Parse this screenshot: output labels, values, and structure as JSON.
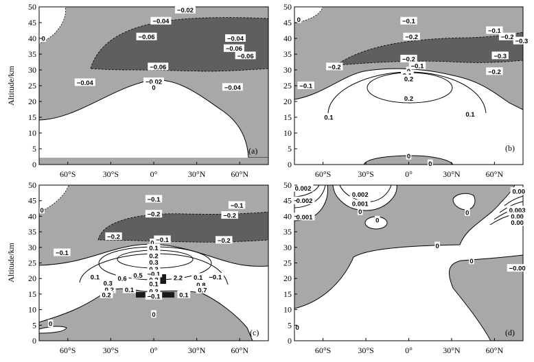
{
  "figure": {
    "ylabel": "Altitude/km",
    "yticks": [
      "0",
      "5",
      "10",
      "15",
      "20",
      "25",
      "30",
      "35",
      "40",
      "45",
      "50"
    ],
    "xticks": [
      "60°S",
      "30°S",
      "0°",
      "30°N",
      "60°N"
    ],
    "colors": {
      "light_fill": "#a8a8a8",
      "dark_fill": "#5f5f5f",
      "background": "#ffffff",
      "line": "#000000"
    }
  },
  "chart_data": [
    {
      "panel": "(a)",
      "type": "contour",
      "xlabel": "",
      "ylabel": "Altitude/km",
      "xlim": [
        -80,
        80
      ],
      "ylim": [
        0,
        50
      ],
      "contour_labels": [
        {
          "text": "−0.02",
          "lat": 22,
          "alt": 49
        },
        {
          "text": "−0.04",
          "lat": 5,
          "alt": 45.5
        },
        {
          "text": "−0.06",
          "lat": -5,
          "alt": 40.5
        },
        {
          "text": "−0.04",
          "lat": 57,
          "alt": 40
        },
        {
          "text": "−0.06",
          "lat": 56,
          "alt": 36.8
        },
        {
          "text": "−0.06",
          "lat": 64,
          "alt": 34.5
        },
        {
          "text": "−0.06",
          "lat": 3,
          "alt": 31
        },
        {
          "text": "−0.04",
          "lat": -48,
          "alt": 26
        },
        {
          "text": "−0.02",
          "lat": 0,
          "alt": 26.3
        },
        {
          "text": "−0.04",
          "lat": 55,
          "alt": 24.5
        },
        {
          "text": "0",
          "lat": 0,
          "alt": 24.5
        },
        {
          "text": "0",
          "lat": -77,
          "alt": 40
        }
      ]
    },
    {
      "panel": "(b)",
      "type": "contour",
      "xlabel": "",
      "ylabel": "",
      "xlim": [
        -80,
        80
      ],
      "ylim": [
        0,
        50
      ],
      "contour_labels": [
        {
          "text": "0",
          "lat": -77,
          "alt": 46
        },
        {
          "text": "−0.1",
          "lat": 0,
          "alt": 45.5
        },
        {
          "text": "−0.2",
          "lat": 2,
          "alt": 40.5
        },
        {
          "text": "−0.1",
          "lat": 60,
          "alt": 42.5
        },
        {
          "text": "−0.2",
          "lat": 69,
          "alt": 40.5
        },
        {
          "text": "−0.3",
          "lat": 79,
          "alt": 39.2
        },
        {
          "text": "−0.3",
          "lat": 64,
          "alt": 34.5
        },
        {
          "text": "−0.2",
          "lat": 0,
          "alt": 33.5
        },
        {
          "text": "−0.2",
          "lat": -52,
          "alt": 31
        },
        {
          "text": "−0.1",
          "lat": 6,
          "alt": 31.3
        },
        {
          "text": "−0.2",
          "lat": 60,
          "alt": 29.5
        },
        {
          "text": "0",
          "lat": 0,
          "alt": 29.7
        },
        {
          "text": "0.1",
          "lat": -1,
          "alt": 28.3
        },
        {
          "text": "0.2",
          "lat": 0,
          "alt": 27.2
        },
        {
          "text": "−0.1",
          "lat": -72,
          "alt": 25
        },
        {
          "text": "0.2",
          "lat": 0,
          "alt": 21
        },
        {
          "text": "0.1",
          "lat": -56,
          "alt": 15
        },
        {
          "text": "0.1",
          "lat": 43,
          "alt": 16
        },
        {
          "text": "0",
          "lat": 0,
          "alt": 2.7
        },
        {
          "text": "0",
          "lat": 15,
          "alt": 0.3
        }
      ]
    },
    {
      "panel": "(c)",
      "type": "contour",
      "xlabel": "",
      "ylabel": "Altitude/km",
      "xlim": [
        -80,
        80
      ],
      "ylim": [
        0,
        50
      ],
      "contour_labels": [
        {
          "text": "0",
          "lat": -78,
          "alt": 42
        },
        {
          "text": "−0.1",
          "lat": 0,
          "alt": 45.5
        },
        {
          "text": "−0.1",
          "lat": 58,
          "alt": 43.5
        },
        {
          "text": "−0.2",
          "lat": 0,
          "alt": 40.7
        },
        {
          "text": "−0.2",
          "lat": 53,
          "alt": 40.3
        },
        {
          "text": "−0.2",
          "lat": -28,
          "alt": 33.5
        },
        {
          "text": "−0.1",
          "lat": 6,
          "alt": 32.5
        },
        {
          "text": "−0.2",
          "lat": 49,
          "alt": 32.3
        },
        {
          "text": "0",
          "lat": -1,
          "alt": 31.5
        },
        {
          "text": "0.1",
          "lat": 0,
          "alt": 29.8
        },
        {
          "text": "−0.1",
          "lat": -64,
          "alt": 28.3
        },
        {
          "text": "0.2",
          "lat": 0,
          "alt": 27.3
        },
        {
          "text": "0.3",
          "lat": 0,
          "alt": 25.2
        },
        {
          "text": "0.2",
          "lat": 0,
          "alt": 23
        },
        {
          "text": "0.1",
          "lat": -41,
          "alt": 20.5
        },
        {
          "text": "0.5",
          "lat": -11,
          "alt": 21
        },
        {
          "text": "0.6",
          "lat": -22,
          "alt": 20
        },
        {
          "text": "−0.1",
          "lat": 0,
          "alt": 21.5
        },
        {
          "text": "0.2",
          "lat": 0,
          "alt": 19.6
        },
        {
          "text": "2.2",
          "lat": 17,
          "alt": 20.3
        },
        {
          "text": "0.1",
          "lat": 31,
          "alt": 20.4
        },
        {
          "text": "−0.1",
          "lat": 43,
          "alt": 20.5
        },
        {
          "text": "0.3",
          "lat": -32,
          "alt": 18.5
        },
        {
          "text": "0.1",
          "lat": 0,
          "alt": 18.3
        },
        {
          "text": "0.8",
          "lat": 33,
          "alt": 18
        },
        {
          "text": "0.2",
          "lat": -31,
          "alt": 16.4
        },
        {
          "text": "0.1",
          "lat": -17,
          "alt": 16.4
        },
        {
          "text": "0.2",
          "lat": 0,
          "alt": 15.9
        },
        {
          "text": "0.7",
          "lat": 34,
          "alt": 16.3
        },
        {
          "text": "0.2",
          "lat": -33,
          "alt": 14.8
        },
        {
          "text": "−0.1",
          "lat": 0,
          "alt": 14.3
        },
        {
          "text": "0.1",
          "lat": 21,
          "alt": 14.8
        },
        {
          "text": "0",
          "lat": 0,
          "alt": 8.5
        },
        {
          "text": "0",
          "lat": -72,
          "alt": 5.5
        }
      ]
    },
    {
      "panel": "(d)",
      "type": "contour",
      "xlabel": "",
      "ylabel": "",
      "xlim": [
        -80,
        80
      ],
      "ylim": [
        0,
        50
      ],
      "contour_labels": [
        {
          "text": "0.002",
          "lat": -74,
          "alt": 49
        },
        {
          "text": "0.002",
          "lat": -73,
          "alt": 45
        },
        {
          "text": "0.002",
          "lat": -34,
          "alt": 47
        },
        {
          "text": "0.001",
          "lat": -34,
          "alt": 44
        },
        {
          "text": "0",
          "lat": -34,
          "alt": 41.5
        },
        {
          "text": "0.001",
          "lat": -73,
          "alt": 39.8
        },
        {
          "text": "0",
          "lat": -22,
          "alt": 38.8
        },
        {
          "text": "0.00",
          "lat": 77,
          "alt": 48
        },
        {
          "text": "0",
          "lat": 41,
          "alt": 41.2
        },
        {
          "text": "0.003",
          "lat": 76,
          "alt": 42
        },
        {
          "text": "0.00",
          "lat": 76,
          "alt": 40
        },
        {
          "text": "0.00",
          "lat": 76,
          "alt": 38
        },
        {
          "text": "0",
          "lat": 20,
          "alt": 30.5
        },
        {
          "text": "0",
          "lat": 44,
          "alt": 25.7
        },
        {
          "text": "−0.00",
          "lat": 76,
          "alt": 23.3
        },
        {
          "text": "0",
          "lat": -78,
          "alt": 4.3
        }
      ]
    }
  ]
}
